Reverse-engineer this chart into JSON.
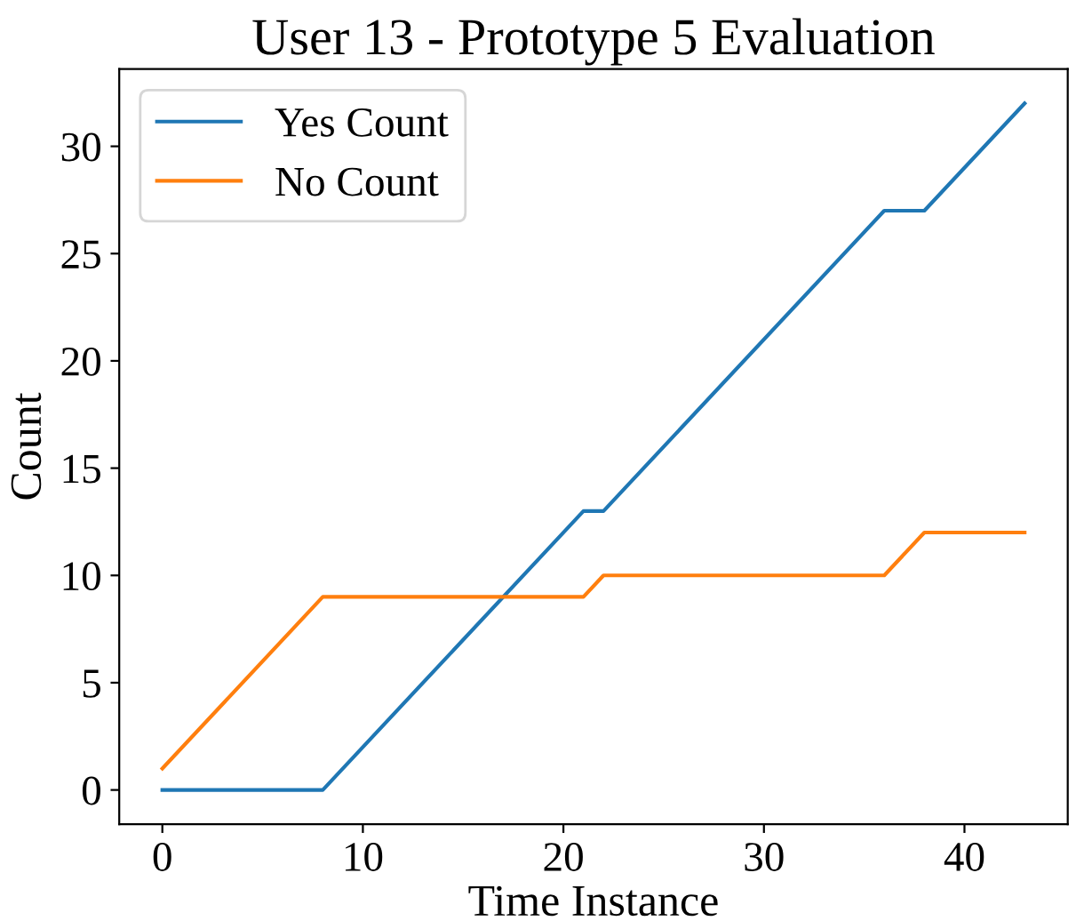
{
  "chart_data": {
    "type": "line",
    "title": "User 13 - Prototype 5 Evaluation",
    "xlabel": "Time Instance",
    "ylabel": "Count",
    "xlim": [
      -2.15,
      45.15
    ],
    "ylim": [
      -1.6,
      33.6
    ],
    "xticks": [
      0,
      10,
      20,
      30,
      40
    ],
    "yticks": [
      0,
      5,
      10,
      15,
      20,
      25,
      30
    ],
    "grid": false,
    "legend": "top left",
    "marker": "none",
    "line_style": "solid",
    "series": [
      {
        "name": "Yes Count",
        "color": "#1f77b4",
        "x": [
          0,
          8,
          21,
          22,
          36,
          38,
          43
        ],
        "values": [
          0,
          0,
          13,
          13,
          27,
          27,
          32
        ]
      },
      {
        "name": "No Count",
        "color": "#ff7f0e",
        "x": [
          0,
          8,
          21,
          22,
          36,
          38,
          43
        ],
        "values": [
          1,
          9,
          9,
          10,
          10,
          12,
          12
        ]
      }
    ]
  }
}
